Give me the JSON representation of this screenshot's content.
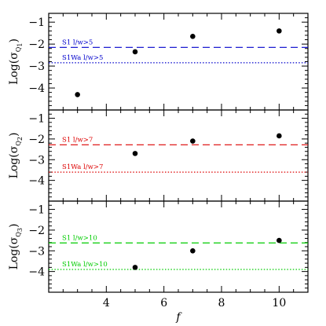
{
  "chart_data": [
    {
      "type": "scatter",
      "ylabel": "Log(σQ1)",
      "ylabel_main": "Log(σ",
      "ylabel_sub": "Q",
      "ylabel_subsub": "1",
      "ylabel_close": ")",
      "xlim": [
        2,
        11
      ],
      "ylim": [
        -5,
        -0.6
      ],
      "yticks": [
        -1,
        -2,
        -3,
        -4
      ],
      "points": [
        {
          "x": 3,
          "y": -4.3
        },
        {
          "x": 5,
          "y": -2.35
        },
        {
          "x": 7,
          "y": -1.65
        },
        {
          "x": 10,
          "y": -1.4
        }
      ],
      "reference_lines": [
        {
          "y": -2.15,
          "style": "dashed",
          "color": "#0000cc",
          "label": "S1 l/w>5"
        },
        {
          "y": -2.85,
          "style": "dotted",
          "color": "#0000cc",
          "label": "S1Wa l/w>5"
        }
      ]
    },
    {
      "type": "scatter",
      "ylabel": "Log(σQ2)",
      "ylabel_main": "Log(σ",
      "ylabel_sub": "Q",
      "ylabel_subsub": "2",
      "ylabel_close": ")",
      "xlim": [
        2,
        11
      ],
      "ylim": [
        -5,
        -0.6
      ],
      "yticks": [
        -1,
        -2,
        -3,
        -4
      ],
      "points": [
        {
          "x": 5,
          "y": -2.7
        },
        {
          "x": 7,
          "y": -2.1
        },
        {
          "x": 10,
          "y": -1.85
        }
      ],
      "reference_lines": [
        {
          "y": -2.28,
          "style": "dashed",
          "color": "#dd0000",
          "label": "S1 l/w>7"
        },
        {
          "y": -3.6,
          "style": "dotted",
          "color": "#dd0000",
          "label": "S1Wa l/w>7"
        }
      ]
    },
    {
      "type": "scatter",
      "ylabel": "Log(σQ3)",
      "ylabel_main": "Log(σ",
      "ylabel_sub": "Q",
      "ylabel_subsub": "3",
      "ylabel_close": ")",
      "xlabel": "f",
      "xlim": [
        2,
        11
      ],
      "ylim": [
        -5,
        -0.6
      ],
      "yticks": [
        -1,
        -2,
        -3,
        -4
      ],
      "xticks": [
        4,
        6,
        8,
        10
      ],
      "points": [
        {
          "x": 5,
          "y": -3.8
        },
        {
          "x": 7,
          "y": -3.0
        },
        {
          "x": 10,
          "y": -2.5
        }
      ],
      "reference_lines": [
        {
          "y": -2.62,
          "style": "dashed",
          "color": "#00cc00",
          "label": "S1 l/w>10"
        },
        {
          "y": -3.9,
          "style": "dotted",
          "color": "#00cc00",
          "label": "S1Wa l/w>10"
        }
      ]
    }
  ]
}
